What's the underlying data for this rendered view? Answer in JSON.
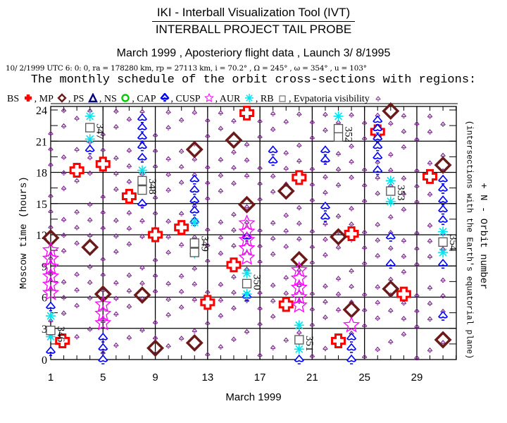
{
  "header": {
    "title": "IKI - Interball Visualization Tool (IVT)",
    "project": "INTERBALL PROJECT TAIL PROBE",
    "subtitle": "March 1999 ,     Aposteriory flight data     ,  Launch  3/ 8/1995",
    "orbit_params": "10/ 2/1999 UTC  6: 0: 0, ra = 178280 km, rp =  27113 km, i = 70.2° , Ω = 245° , ω = 354° , u = 103°",
    "schedule_title": "The monthly schedule of the orbit cross-sections with regions:"
  },
  "legend": [
    {
      "key": "BS",
      "label": "BS",
      "symbol": "cross",
      "color": "#ff0000"
    },
    {
      "key": "MP",
      "label": "MP",
      "symbol": "diamond",
      "color": "#6b1a1a"
    },
    {
      "key": "PS",
      "label": "PS",
      "symbol": "triangle",
      "color": "#00007f"
    },
    {
      "key": "NS",
      "label": "NS",
      "symbol": "circle",
      "color": "#00cc00"
    },
    {
      "key": "CAP",
      "label": "CAP",
      "symbol": "spade",
      "color": "#0000ff"
    },
    {
      "key": "CUSP",
      "label": "CUSP",
      "symbol": "star",
      "color": "#ff00ff"
    },
    {
      "key": "AUR",
      "label": "AUR",
      "symbol": "asterisk",
      "color": "#00e5ee"
    },
    {
      "key": "RB",
      "label": "RB",
      "symbol": "square",
      "color": "#555555"
    },
    {
      "key": "EV",
      "label": "Evpatoria visibility",
      "symbol": "small-spade",
      "color": "#7b2a8b"
    }
  ],
  "chart_data": {
    "type": "scatter",
    "title": "The monthly schedule of the orbit cross-sections with regions",
    "xlabel": "March 1999",
    "ylabel": "Moscow time (hours)",
    "right_label": "+ N - Orbit number",
    "right_sublabel": "(intersections with the Earth's equatorial plane)",
    "xlim": [
      1,
      32
    ],
    "ylim": [
      0,
      24
    ],
    "x_ticks": [
      1,
      5,
      9,
      13,
      17,
      21,
      25,
      29
    ],
    "y_ticks": [
      0,
      3,
      6,
      9,
      12,
      15,
      18,
      21,
      24
    ],
    "grid": true,
    "series": [
      {
        "name": "BS",
        "points": [
          [
            1.9,
            1.8
          ],
          [
            3,
            18.2
          ],
          [
            5,
            18.8
          ],
          [
            7,
            15.7
          ],
          [
            9,
            12
          ],
          [
            11,
            12.7
          ],
          [
            13,
            5.5
          ],
          [
            15,
            9.1
          ],
          [
            16,
            23.7
          ],
          [
            19,
            5.3
          ],
          [
            20,
            17.5
          ],
          [
            23,
            1.8
          ],
          [
            24,
            12.1
          ],
          [
            26,
            21.9
          ],
          [
            28,
            6.3
          ],
          [
            30,
            17.6
          ]
        ]
      },
      {
        "name": "MP",
        "points": [
          [
            1,
            11.7
          ],
          [
            4,
            10.8
          ],
          [
            5,
            6.3
          ],
          [
            8,
            6.2
          ],
          [
            9,
            1.1
          ],
          [
            12,
            1.6
          ],
          [
            12,
            20.2
          ],
          [
            15,
            21.1
          ],
          [
            16,
            14.9
          ],
          [
            19,
            16.2
          ],
          [
            20,
            9.6
          ],
          [
            23,
            11.8
          ],
          [
            24,
            4.8
          ],
          [
            27,
            23.9
          ],
          [
            27,
            6.8
          ],
          [
            31,
            18.7
          ],
          [
            31,
            1.9
          ]
        ]
      },
      {
        "name": "CAP",
        "points": [
          [
            1,
            5.1
          ],
          [
            1,
            0.8
          ],
          [
            4,
            20.2
          ],
          [
            5,
            2.1
          ],
          [
            5,
            1.1
          ],
          [
            5,
            0
          ],
          [
            8,
            23.2
          ],
          [
            8,
            22.3
          ],
          [
            8,
            21.4
          ],
          [
            8,
            20.5
          ],
          [
            8,
            19.4
          ],
          [
            8,
            15.0
          ],
          [
            12,
            17.3
          ],
          [
            12,
            16.3
          ],
          [
            12,
            15.3
          ],
          [
            12,
            14.3
          ],
          [
            12,
            13.3
          ],
          [
            16,
            11.8
          ],
          [
            16,
            6.1
          ],
          [
            18,
            20.1
          ],
          [
            18,
            19.1
          ],
          [
            20,
            0
          ],
          [
            22,
            20.1
          ],
          [
            22,
            19.2
          ],
          [
            22,
            14.7
          ],
          [
            22,
            13.7
          ],
          [
            24,
            2.1
          ],
          [
            24,
            1.1
          ],
          [
            24,
            0
          ],
          [
            26,
            23.0
          ],
          [
            26,
            22.2
          ],
          [
            26,
            21.3
          ],
          [
            26,
            20.5
          ],
          [
            26,
            19.5
          ],
          [
            26,
            18.2
          ],
          [
            27,
            9.2
          ],
          [
            27,
            11.8
          ],
          [
            31,
            17.3
          ],
          [
            31,
            16.4
          ],
          [
            31,
            15.3
          ],
          [
            31,
            14.4
          ],
          [
            31,
            13.4
          ],
          [
            31,
            9.2
          ],
          [
            31,
            4.2
          ]
        ]
      },
      {
        "name": "CUSP",
        "points": [
          [
            1,
            10.5
          ],
          [
            1,
            9.7
          ],
          [
            1,
            8.9
          ],
          [
            1,
            8.0
          ],
          [
            1,
            7.2
          ],
          [
            1,
            6.4
          ],
          [
            5,
            5.3
          ],
          [
            5,
            4.4
          ],
          [
            5,
            3.5
          ],
          [
            16,
            13.1
          ],
          [
            16,
            12.3
          ],
          [
            16,
            11.5
          ],
          [
            16,
            10.7
          ],
          [
            16,
            9.8
          ],
          [
            20,
            8.6
          ],
          [
            20,
            7.8
          ],
          [
            20,
            6.9
          ],
          [
            20,
            6.0
          ],
          [
            20,
            5.2
          ],
          [
            24,
            3.3
          ]
        ]
      },
      {
        "name": "AUR",
        "points": [
          [
            1,
            4.2
          ],
          [
            1,
            2.2
          ],
          [
            4,
            23.4
          ],
          [
            4,
            21.2
          ],
          [
            8,
            18.2
          ],
          [
            12,
            13.2
          ],
          [
            12,
            10.2
          ],
          [
            16,
            8.3
          ],
          [
            16,
            6.3
          ],
          [
            20,
            3.3
          ],
          [
            20,
            1.0
          ],
          [
            23,
            23.4
          ],
          [
            27,
            17.2
          ],
          [
            27,
            15.2
          ],
          [
            31,
            12.3
          ],
          [
            31,
            10.3
          ]
        ]
      },
      {
        "name": "RB",
        "points": [
          [
            1,
            2.8
          ],
          [
            4,
            22.3
          ],
          [
            8,
            17.2
          ],
          [
            8,
            16.3
          ],
          [
            12,
            11.2
          ],
          [
            12,
            10.3
          ],
          [
            16,
            7.3
          ],
          [
            20,
            1.9
          ],
          [
            23,
            22.2
          ],
          [
            23,
            21.4
          ],
          [
            27,
            16.2
          ],
          [
            31,
            11.3
          ]
        ]
      }
    ],
    "orbit_labels": [
      {
        "orbit": "346",
        "day": 1,
        "hour": 2.8
      },
      {
        "orbit": "347",
        "day": 4,
        "hour": 22.3
      },
      {
        "orbit": "348",
        "day": 8,
        "hour": 17.0
      },
      {
        "orbit": "349",
        "day": 12,
        "hour": 11.5
      },
      {
        "orbit": "350",
        "day": 16,
        "hour": 7.8
      },
      {
        "orbit": "351",
        "day": 20,
        "hour": 1.9
      },
      {
        "orbit": "352",
        "day": 23,
        "hour": 22.0
      },
      {
        "orbit": "353",
        "day": 27,
        "hour": 16.4
      },
      {
        "orbit": "354",
        "day": 31,
        "hour": 11.6
      }
    ]
  }
}
